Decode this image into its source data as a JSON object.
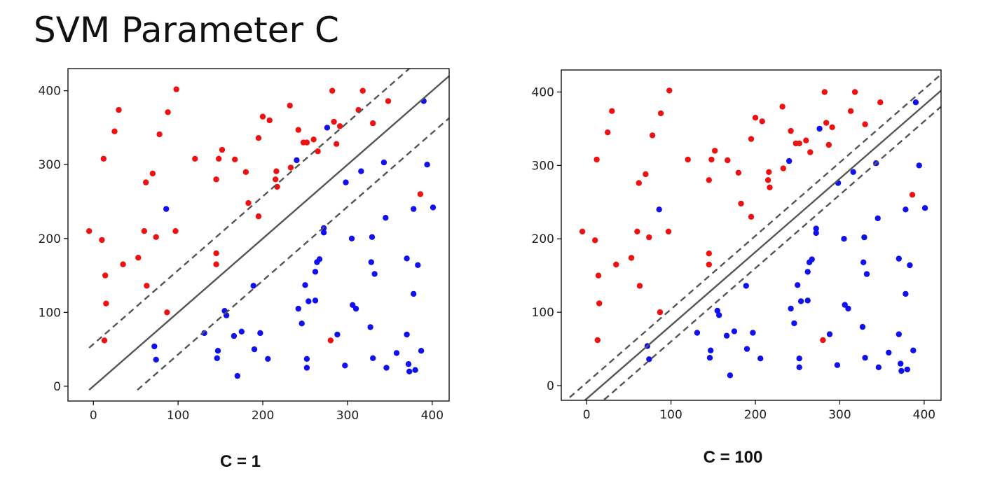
{
  "slide": {
    "title": "SVM Parameter C"
  },
  "colors": {
    "class_a": "#ee1111",
    "class_b": "#1111ee",
    "boundary": "#555555",
    "frame": "#000000"
  },
  "chart_data": [
    {
      "type": "scatter",
      "caption": "C = 1",
      "xlim": [
        -30,
        420
      ],
      "ylim": [
        -20,
        430
      ],
      "xticks": [
        0,
        100,
        200,
        300,
        400
      ],
      "yticks": [
        0,
        100,
        200,
        300,
        400
      ],
      "grid": false,
      "decision_boundary": {
        "slope": 1.0,
        "intercept": 0,
        "margin": 57,
        "x_range": [
          -5,
          420
        ]
      },
      "series": [
        {
          "class": "red",
          "points": [
            [
              -5,
              210
            ],
            [
              10,
              198
            ],
            [
              12,
              308
            ],
            [
              14,
              150
            ],
            [
              15,
              112
            ],
            [
              13,
              62
            ],
            [
              25,
              345
            ],
            [
              30,
              374
            ],
            [
              35,
              165
            ],
            [
              53,
              174
            ],
            [
              60,
              210
            ],
            [
              62,
              276
            ],
            [
              63,
              136
            ],
            [
              70,
              288
            ],
            [
              74,
              202
            ],
            [
              78,
              341
            ],
            [
              87,
              100
            ],
            [
              88,
              371
            ],
            [
              97,
              210
            ],
            [
              98,
              402
            ],
            [
              120,
              308
            ],
            [
              145,
              280
            ],
            [
              145,
              180
            ],
            [
              145,
              165
            ],
            [
              148,
              308
            ],
            [
              152,
              320
            ],
            [
              167,
              307
            ],
            [
              180,
              290
            ],
            [
              183,
              248
            ],
            [
              195,
              230
            ],
            [
              195,
              336
            ],
            [
              200,
              365
            ],
            [
              208,
              360
            ],
            [
              215,
              280
            ],
            [
              216,
              291
            ],
            [
              217,
              270
            ],
            [
              232,
              380
            ],
            [
              233,
              296
            ],
            [
              242,
              347
            ],
            [
              248,
              330
            ],
            [
              252,
              330
            ],
            [
              260,
              334
            ],
            [
              265,
              318
            ],
            [
              280,
              62
            ],
            [
              282,
              400
            ],
            [
              284,
              358
            ],
            [
              287,
              328
            ],
            [
              291,
              352
            ],
            [
              313,
              374
            ],
            [
              318,
              400
            ],
            [
              330,
              356
            ],
            [
              348,
              386
            ],
            [
              386,
              260
            ]
          ]
        },
        {
          "class": "blue",
          "points": [
            [
              72,
              54
            ],
            [
              74,
              36
            ],
            [
              86,
              240
            ],
            [
              131,
              72
            ],
            [
              146,
              38
            ],
            [
              147,
              48
            ],
            [
              155,
              102
            ],
            [
              157,
              96
            ],
            [
              166,
              68
            ],
            [
              170,
              14
            ],
            [
              175,
              74
            ],
            [
              189,
              136
            ],
            [
              190,
              50
            ],
            [
              197,
              72
            ],
            [
              206,
              37
            ],
            [
              240,
              306
            ],
            [
              242,
              105
            ],
            [
              246,
              85
            ],
            [
              250,
              137
            ],
            [
              252,
              37
            ],
            [
              252,
              25
            ],
            [
              254,
              115
            ],
            [
              262,
              116
            ],
            [
              262,
              155
            ],
            [
              264,
              168
            ],
            [
              267,
              172
            ],
            [
              272,
              214
            ],
            [
              272,
              208
            ],
            [
              276,
              350
            ],
            [
              288,
              70
            ],
            [
              297,
              28
            ],
            [
              298,
              276
            ],
            [
              305,
              200
            ],
            [
              306,
              110
            ],
            [
              310,
              105
            ],
            [
              316,
              291
            ],
            [
              327,
              80
            ],
            [
              328,
              168
            ],
            [
              329,
              202
            ],
            [
              330,
              38
            ],
            [
              332,
              152
            ],
            [
              343,
              303
            ],
            [
              345,
              228
            ],
            [
              346,
              25
            ],
            [
              358,
              45
            ],
            [
              370,
              70
            ],
            [
              370,
              173
            ],
            [
              372,
              30
            ],
            [
              373,
              20
            ],
            [
              378,
              240
            ],
            [
              378,
              125
            ],
            [
              380,
              22
            ],
            [
              383,
              164
            ],
            [
              387,
              48
            ],
            [
              390,
              386
            ],
            [
              394,
              300
            ],
            [
              401,
              242
            ]
          ]
        }
      ]
    },
    {
      "type": "scatter",
      "caption": "C = 100",
      "xlim": [
        -30,
        420
      ],
      "ylim": [
        -20,
        430
      ],
      "xticks": [
        0,
        100,
        200,
        300,
        400
      ],
      "yticks": [
        0,
        100,
        200,
        300,
        400
      ],
      "grid": false,
      "decision_boundary": {
        "slope": 1.0,
        "intercept": -18,
        "margin": 22,
        "x_range": [
          -20,
          420
        ]
      },
      "series": [
        {
          "class": "red",
          "points": [
            [
              -5,
              210
            ],
            [
              10,
              198
            ],
            [
              12,
              308
            ],
            [
              14,
              150
            ],
            [
              15,
              112
            ],
            [
              13,
              62
            ],
            [
              25,
              345
            ],
            [
              30,
              374
            ],
            [
              35,
              165
            ],
            [
              53,
              174
            ],
            [
              60,
              210
            ],
            [
              62,
              276
            ],
            [
              63,
              136
            ],
            [
              70,
              288
            ],
            [
              74,
              202
            ],
            [
              78,
              341
            ],
            [
              87,
              100
            ],
            [
              88,
              371
            ],
            [
              97,
              210
            ],
            [
              98,
              402
            ],
            [
              120,
              308
            ],
            [
              145,
              280
            ],
            [
              145,
              180
            ],
            [
              145,
              165
            ],
            [
              148,
              308
            ],
            [
              152,
              320
            ],
            [
              167,
              307
            ],
            [
              180,
              290
            ],
            [
              183,
              248
            ],
            [
              195,
              230
            ],
            [
              195,
              336
            ],
            [
              200,
              365
            ],
            [
              208,
              360
            ],
            [
              215,
              280
            ],
            [
              216,
              291
            ],
            [
              217,
              270
            ],
            [
              232,
              380
            ],
            [
              233,
              296
            ],
            [
              242,
              347
            ],
            [
              248,
              330
            ],
            [
              252,
              330
            ],
            [
              260,
              334
            ],
            [
              265,
              318
            ],
            [
              280,
              62
            ],
            [
              282,
              400
            ],
            [
              284,
              358
            ],
            [
              287,
              328
            ],
            [
              291,
              352
            ],
            [
              313,
              374
            ],
            [
              318,
              400
            ],
            [
              330,
              356
            ],
            [
              348,
              386
            ],
            [
              386,
              260
            ]
          ]
        },
        {
          "class": "blue",
          "points": [
            [
              72,
              54
            ],
            [
              74,
              36
            ],
            [
              86,
              240
            ],
            [
              131,
              72
            ],
            [
              146,
              38
            ],
            [
              147,
              48
            ],
            [
              155,
              102
            ],
            [
              157,
              96
            ],
            [
              166,
              68
            ],
            [
              170,
              14
            ],
            [
              175,
              74
            ],
            [
              189,
              136
            ],
            [
              190,
              50
            ],
            [
              197,
              72
            ],
            [
              206,
              37
            ],
            [
              240,
              306
            ],
            [
              242,
              105
            ],
            [
              246,
              85
            ],
            [
              250,
              137
            ],
            [
              252,
              37
            ],
            [
              252,
              25
            ],
            [
              254,
              115
            ],
            [
              262,
              116
            ],
            [
              262,
              155
            ],
            [
              264,
              168
            ],
            [
              267,
              172
            ],
            [
              272,
              214
            ],
            [
              272,
              208
            ],
            [
              276,
              350
            ],
            [
              288,
              70
            ],
            [
              297,
              28
            ],
            [
              298,
              276
            ],
            [
              305,
              200
            ],
            [
              306,
              110
            ],
            [
              310,
              105
            ],
            [
              316,
              291
            ],
            [
              327,
              80
            ],
            [
              328,
              168
            ],
            [
              329,
              202
            ],
            [
              330,
              38
            ],
            [
              332,
              152
            ],
            [
              343,
              303
            ],
            [
              345,
              228
            ],
            [
              346,
              25
            ],
            [
              358,
              45
            ],
            [
              370,
              70
            ],
            [
              370,
              173
            ],
            [
              372,
              30
            ],
            [
              373,
              20
            ],
            [
              378,
              240
            ],
            [
              378,
              125
            ],
            [
              380,
              22
            ],
            [
              383,
              164
            ],
            [
              387,
              48
            ],
            [
              390,
              386
            ],
            [
              394,
              300
            ],
            [
              401,
              242
            ]
          ]
        }
      ]
    }
  ]
}
